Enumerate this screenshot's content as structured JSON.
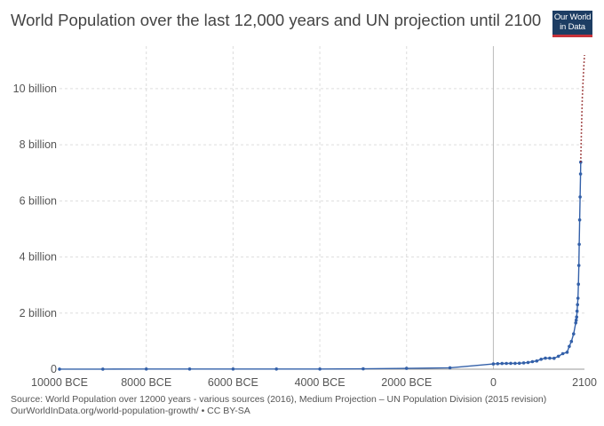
{
  "header": {
    "title": "World Population over the last 12,000 years and UN projection until 2100",
    "logo_line1": "Our World",
    "logo_line2": "in Data"
  },
  "footer": {
    "source_line1": "Source: World Population over 12000 years - various sources (2016), Medium Projection – UN Population Division (2015 revision)",
    "source_line2": "OurWorldInData.org/world-population-growth/ • CC BY-SA"
  },
  "colors": {
    "line": "#3360a9",
    "projection": "#8b1a1a",
    "grid": "#dddddd",
    "zero_line": "#bbbbbb",
    "logo_bg": "#1d3d63",
    "logo_bar": "#c7323a"
  },
  "chart_data": {
    "type": "line",
    "title": "World Population over the last 12,000 years and UN projection until 2100",
    "xlabel": "",
    "ylabel": "",
    "xlim": [
      -10000,
      2100
    ],
    "ylim": [
      0,
      11200000000
    ],
    "grid": true,
    "x_ticks": [
      {
        "value": -10000,
        "label": "10000 BCE"
      },
      {
        "value": -8000,
        "label": "8000 BCE"
      },
      {
        "value": -6000,
        "label": "6000 BCE"
      },
      {
        "value": -4000,
        "label": "4000 BCE"
      },
      {
        "value": -2000,
        "label": "2000 BCE"
      },
      {
        "value": 0,
        "label": "0"
      },
      {
        "value": 2100,
        "label": "2100"
      }
    ],
    "y_ticks": [
      {
        "value": 0,
        "label": "0"
      },
      {
        "value": 2000000000,
        "label": "2 billion"
      },
      {
        "value": 4000000000,
        "label": "4 billion"
      },
      {
        "value": 6000000000,
        "label": "6 billion"
      },
      {
        "value": 8000000000,
        "label": "8 billion"
      },
      {
        "value": 10000000000,
        "label": "10 billion"
      }
    ],
    "series": [
      {
        "style": "solid",
        "x": [
          -10000,
          -9000,
          -8000,
          -7000,
          -6000,
          -5000,
          -4000,
          -3000,
          -2000,
          -1000,
          0,
          100,
          200,
          300,
          400,
          500,
          600,
          700,
          800,
          900,
          1000,
          1100,
          1200,
          1300,
          1400,
          1500,
          1600,
          1700,
          1750,
          1800,
          1850,
          1900,
          1910,
          1920,
          1930,
          1940,
          1950,
          1960,
          1970,
          1980,
          1990,
          2000,
          2010,
          2015
        ],
        "y": [
          2000000,
          4000000,
          5000000,
          5000000,
          5000000,
          5000000,
          7000000,
          14000000,
          27000000,
          50000000,
          188000000,
          195000000,
          202000000,
          205000000,
          209000000,
          210000000,
          213000000,
          226000000,
          240000000,
          269000000,
          295000000,
          353000000,
          393000000,
          392000000,
          390000000,
          461000000,
          554000000,
          603000000,
          814000000,
          990000000,
          1260000000,
          1650000000,
          1750000000,
          1860000000,
          2070000000,
          2300000000,
          2530000000,
          3030000000,
          3700000000,
          4450000000,
          5320000000,
          6140000000,
          6960000000,
          7380000000
        ]
      },
      {
        "style": "dotted",
        "x": [
          2015,
          2030,
          2050,
          2075,
          2100
        ],
        "y": [
          7380000000,
          8500000000,
          9700000000,
          10500000000,
          11200000000
        ]
      }
    ]
  }
}
